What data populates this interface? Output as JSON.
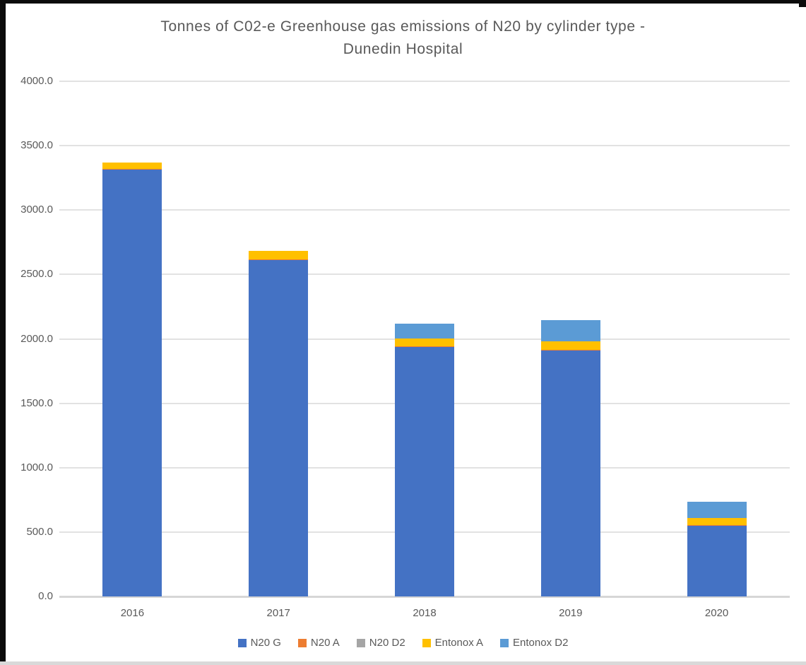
{
  "window": {
    "background": "#ffffff",
    "border_color": "#0b0b0b"
  },
  "chart_data": {
    "type": "bar",
    "stacked": true,
    "title": "Tonnes of C02-e Greenhouse gas emissions of N20 by cylinder type - Dunedin Hospital",
    "title_lines": [
      "Tonnes of C02-e Greenhouse gas emissions of N20 by cylinder type -",
      "Dunedin Hospital"
    ],
    "categories": [
      "2016",
      "2017",
      "2018",
      "2019",
      "2020"
    ],
    "series": [
      {
        "name": "N20 G",
        "color": "#4472C4",
        "values": [
          3315,
          2615,
          1940,
          1910,
          550
        ]
      },
      {
        "name": "N20 A",
        "color": "#ED7D31",
        "values": [
          5,
          5,
          5,
          5,
          5
        ]
      },
      {
        "name": "N20 D2",
        "color": "#A5A5A5",
        "values": [
          0,
          0,
          0,
          0,
          0
        ]
      },
      {
        "name": "Entonox A",
        "color": "#FFC000",
        "values": [
          50,
          65,
          60,
          65,
          55
        ]
      },
      {
        "name": "Entonox D2",
        "color": "#5B9BD5",
        "values": [
          0,
          0,
          115,
          165,
          125
        ]
      }
    ],
    "totals": [
      3370,
      2685,
      2120,
      2145,
      735
    ],
    "ylim": [
      0,
      4000
    ],
    "ytick_step": 500,
    "ytick_labels": [
      "0.0",
      "500.0",
      "1000.0",
      "1500.0",
      "2000.0",
      "2500.0",
      "3000.0",
      "3500.0",
      "4000.0"
    ],
    "grid": true,
    "legend_position": "bottom",
    "colors": {
      "grid": "#e2e2e2",
      "axis": "#d6d6d6",
      "text": "#595959"
    }
  }
}
